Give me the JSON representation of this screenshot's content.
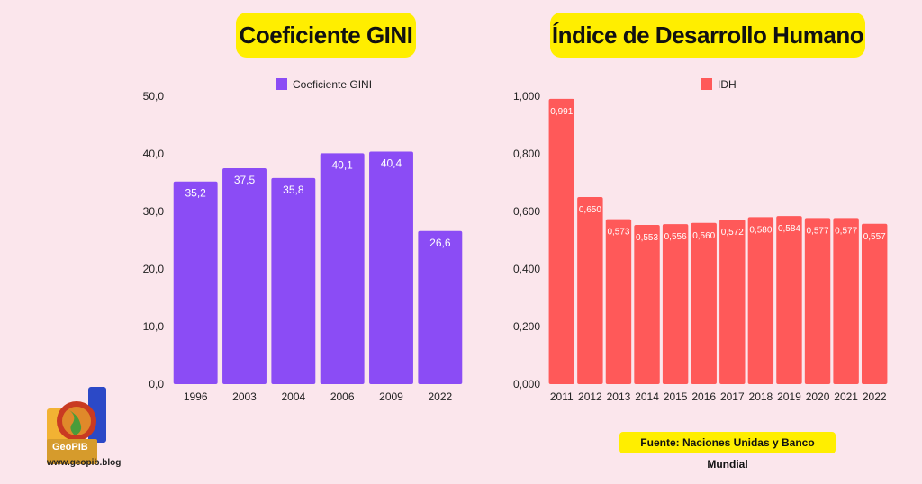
{
  "gini_panel": {
    "title": "Coeficiente GINI"
  },
  "idh_panel": {
    "title": "Índice de Desarrollo Humano"
  },
  "source_note": "Fuente:  Naciones Unidas y Banco Mundial",
  "logo": {
    "name": "GeoPIB",
    "url": "www.geopib.blog"
  },
  "colors": {
    "gini_bar": "#8b4cf5",
    "idh_bar": "#ff5959",
    "title_bg": "#ffee00",
    "background": "#fbe6ec"
  },
  "chart_data": [
    {
      "type": "bar",
      "categories": [
        "1996",
        "2003",
        "2004",
        "2006",
        "2009",
        "2022"
      ],
      "series": [
        {
          "name": "Coeficiente GINI",
          "values": [
            35.2,
            37.5,
            35.8,
            40.1,
            40.4,
            26.6
          ]
        }
      ],
      "value_labels": [
        "35,2",
        "37,5",
        "35,8",
        "40,1",
        "40,4",
        "26,6"
      ],
      "ylim": [
        0,
        50
      ],
      "yticks": [
        "0,0",
        "10,0",
        "20,0",
        "30,0",
        "40,0",
        "50,0"
      ],
      "legend": "top",
      "grid": false
    },
    {
      "type": "bar",
      "categories": [
        "2011",
        "2012",
        "2013",
        "2014",
        "2015",
        "2016",
        "2017",
        "2018",
        "2019",
        "2020",
        "2021",
        "2022"
      ],
      "series": [
        {
          "name": "IDH",
          "values": [
            0.991,
            0.65,
            0.573,
            0.553,
            0.556,
            0.56,
            0.572,
            0.58,
            0.584,
            0.577,
            0.577,
            0.557
          ]
        }
      ],
      "value_labels": [
        "0,991",
        "0,650",
        "0,573",
        "0,553",
        "0,556",
        "0,560",
        "0,572",
        "0,580",
        "0,584",
        "0,577",
        "0,577",
        "0,557"
      ],
      "ylim": [
        0,
        1
      ],
      "yticks": [
        "0,000",
        "0,200",
        "0,400",
        "0,600",
        "0,800",
        "1,000"
      ],
      "legend": "top",
      "grid": false
    }
  ]
}
